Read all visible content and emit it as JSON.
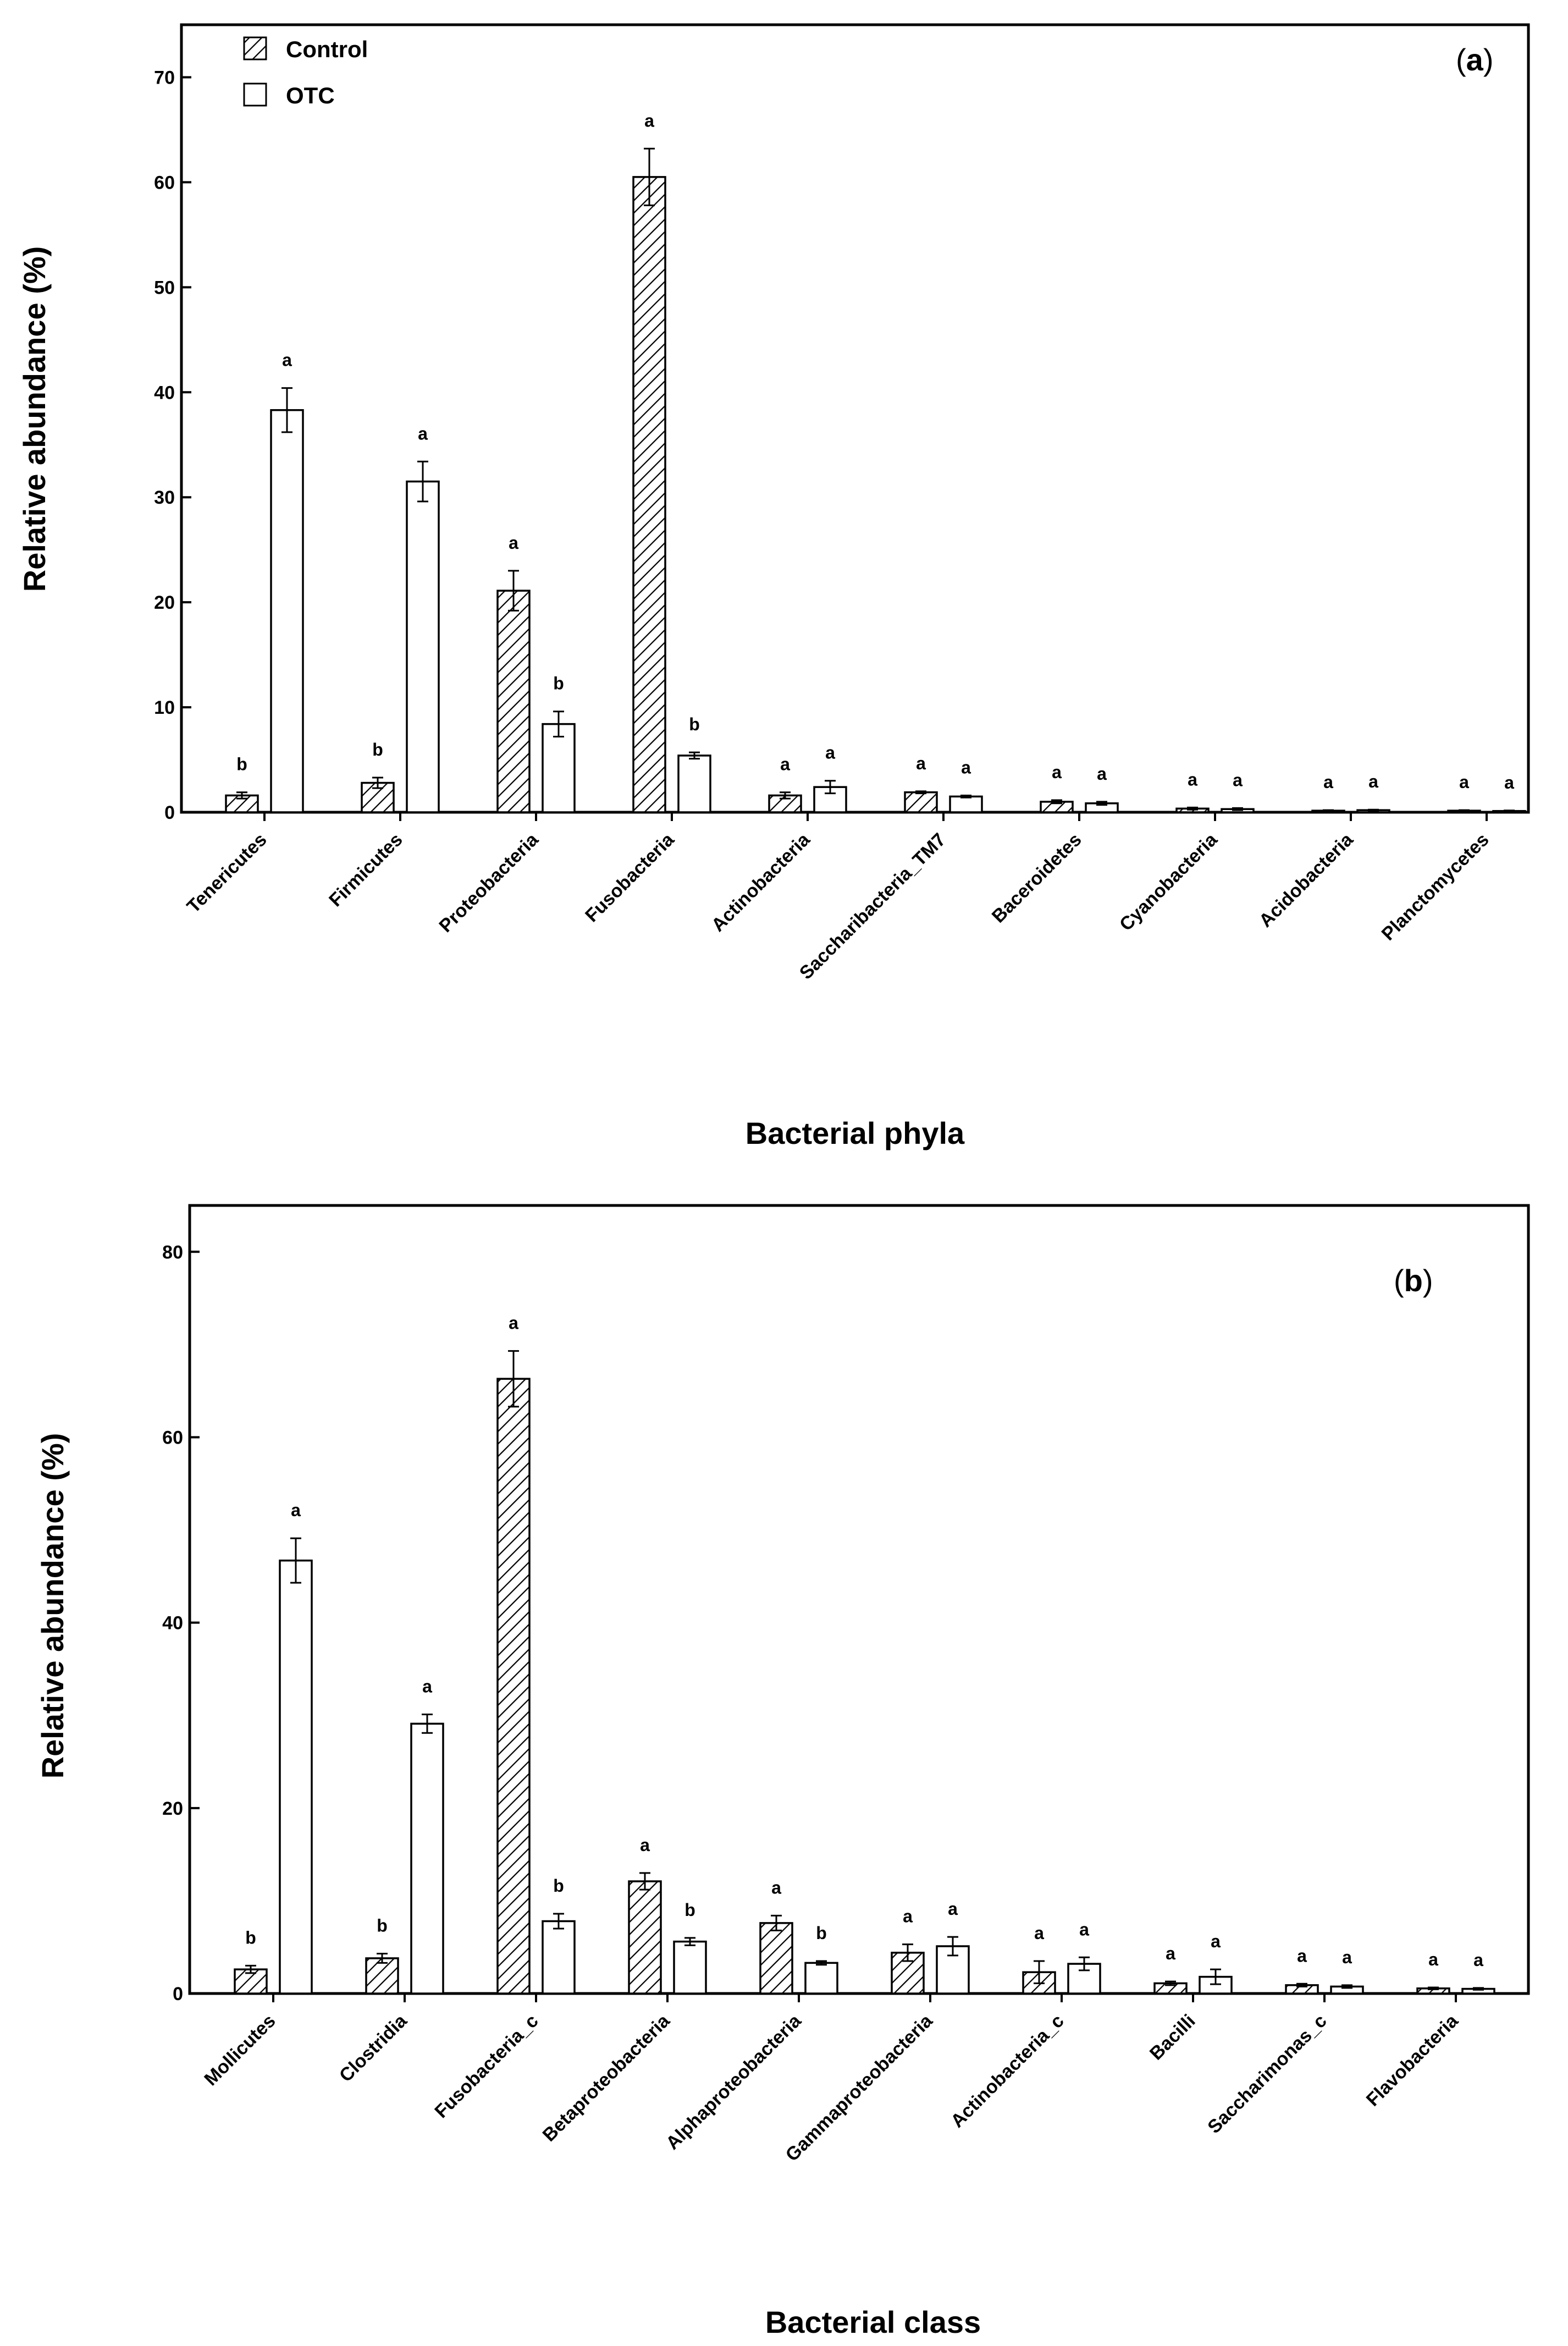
{
  "chart_data": [
    {
      "type": "bar",
      "panel_label": "(a)",
      "panel_letter": "a",
      "xlabel": "Bacterial phyla",
      "ylabel": "Relative abundance (%)",
      "ylim": [
        0,
        75
      ],
      "yticks": [
        0,
        10,
        20,
        30,
        40,
        50,
        60,
        70
      ],
      "legend": {
        "placement": "top-left",
        "entries": [
          "Control",
          "OTC"
        ]
      },
      "categories": [
        "Tenericutes",
        "Firmicutes",
        "Proteobacteria",
        "Fusobacteria",
        "Actinobacteria",
        "Saccharibacteria_TM7",
        "Baceroidetes",
        "Cyanobacteria",
        "Acidobacteria",
        "Planctomycetes"
      ],
      "series": [
        {
          "name": "Control",
          "pattern": "hatched",
          "values": [
            1.6,
            2.8,
            21.1,
            60.5,
            1.6,
            1.9,
            1.0,
            0.35,
            0.15,
            0.15
          ],
          "errors": [
            0.3,
            0.5,
            1.9,
            2.7,
            0.3,
            0.1,
            0.15,
            0.1,
            0.05,
            0.05
          ],
          "letters": [
            "b",
            "b",
            "a",
            "a",
            "a",
            "a",
            "a",
            "a",
            "a",
            "a"
          ]
        },
        {
          "name": "OTC",
          "pattern": "open",
          "values": [
            38.3,
            31.5,
            8.4,
            5.4,
            2.4,
            1.5,
            0.85,
            0.3,
            0.2,
            0.12
          ],
          "errors": [
            2.1,
            1.9,
            1.2,
            0.3,
            0.6,
            0.1,
            0.15,
            0.1,
            0.05,
            0.05
          ],
          "letters": [
            "a",
            "a",
            "b",
            "b",
            "a",
            "a",
            "a",
            "a",
            "a",
            "a"
          ]
        }
      ]
    },
    {
      "type": "bar",
      "panel_label": "(b)",
      "panel_letter": "b",
      "xlabel": "Bacterial class",
      "ylabel": "Relative abundance (%)",
      "ylim": [
        0,
        85
      ],
      "yticks": [
        0,
        20,
        40,
        60,
        80
      ],
      "categories": [
        "Mollicutes",
        "Clostridia",
        "Fusobacteria_c",
        "Betaproteobacteria",
        "Alphaproteobacteria",
        "Gammaproteobacteria",
        "Actinobacteria_c",
        "Bacilli",
        "Saccharimonas_c",
        "Flavobacteria"
      ],
      "series": [
        {
          "name": "Control",
          "pattern": "hatched",
          "values": [
            2.6,
            3.8,
            66.3,
            12.1,
            7.6,
            4.4,
            2.3,
            1.1,
            0.9,
            0.55
          ],
          "errors": [
            0.4,
            0.5,
            3.0,
            0.9,
            0.8,
            0.9,
            1.2,
            0.2,
            0.15,
            0.1
          ],
          "letters": [
            "b",
            "b",
            "a",
            "a",
            "a",
            "a",
            "a",
            "a",
            "a",
            "a"
          ]
        },
        {
          "name": "OTC",
          "pattern": "open",
          "values": [
            46.7,
            29.1,
            7.8,
            5.6,
            3.3,
            5.1,
            3.2,
            1.8,
            0.75,
            0.5
          ],
          "errors": [
            2.4,
            1.0,
            0.8,
            0.4,
            0.2,
            1.0,
            0.7,
            0.8,
            0.15,
            0.1
          ],
          "letters": [
            "a",
            "a",
            "b",
            "b",
            "b",
            "a",
            "a",
            "a",
            "a",
            "a"
          ]
        }
      ]
    }
  ]
}
